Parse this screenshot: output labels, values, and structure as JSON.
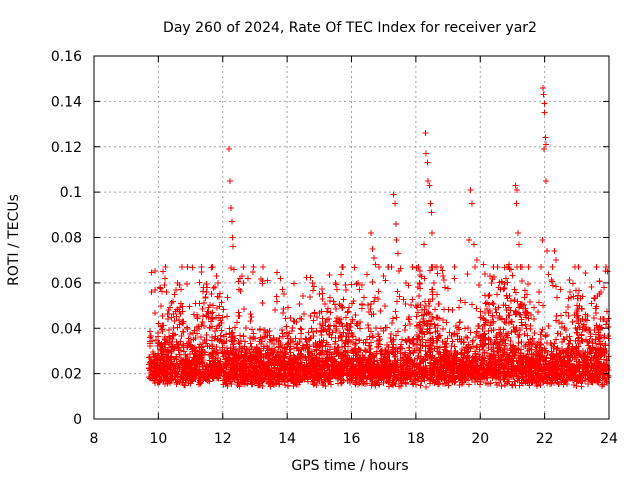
{
  "chart_data": {
    "type": "scatter",
    "title": "Day 260 of 2024, Rate Of TEC Index for receiver yar2",
    "xlabel": "GPS time / hours",
    "ylabel": "ROTI / TECUs",
    "xlim": [
      8,
      24
    ],
    "ylim": [
      0,
      0.16
    ],
    "x_ticks": [
      8,
      10,
      12,
      14,
      16,
      18,
      20,
      22,
      24
    ],
    "y_ticks": [
      0,
      0.02,
      0.04,
      0.06,
      0.08,
      0.1,
      0.12,
      0.14,
      0.16
    ],
    "x_tick_labels": [
      "8",
      "10",
      "12",
      "14",
      "16",
      "18",
      "20",
      "22",
      "24"
    ],
    "y_tick_labels": [
      "0",
      "0.02",
      "0.04",
      "0.06",
      "0.08",
      "0.1",
      "0.12",
      "0.14",
      "0.16"
    ],
    "grid": true,
    "marker": "plus",
    "series_color": "#ff0000",
    "data_range_x": [
      9.7,
      24
    ],
    "base_density_points": 5200,
    "series": [
      {
        "name": "ROTI",
        "points": [
          [
            12.2,
            0.119
          ],
          [
            12.22,
            0.105
          ],
          [
            12.25,
            0.093
          ],
          [
            12.28,
            0.087
          ],
          [
            12.3,
            0.08
          ],
          [
            12.32,
            0.076
          ],
          [
            12.35,
            0.066
          ],
          [
            18.3,
            0.126
          ],
          [
            18.32,
            0.117
          ],
          [
            18.36,
            0.113
          ],
          [
            18.38,
            0.105
          ],
          [
            18.42,
            0.103
          ],
          [
            18.45,
            0.095
          ],
          [
            18.48,
            0.091
          ],
          [
            18.5,
            0.082
          ],
          [
            18.25,
            0.077
          ],
          [
            21.95,
            0.146
          ],
          [
            21.97,
            0.143
          ],
          [
            21.99,
            0.139
          ],
          [
            22.0,
            0.135
          ],
          [
            22.02,
            0.124
          ],
          [
            22.04,
            0.121
          ],
          [
            21.98,
            0.119
          ],
          [
            22.05,
            0.105
          ],
          [
            21.93,
            0.079
          ],
          [
            22.07,
            0.074
          ],
          [
            21.1,
            0.103
          ],
          [
            21.14,
            0.101
          ],
          [
            21.12,
            0.095
          ],
          [
            21.18,
            0.082
          ],
          [
            21.2,
            0.077
          ],
          [
            19.7,
            0.101
          ],
          [
            19.75,
            0.095
          ],
          [
            19.65,
            0.079
          ],
          [
            19.8,
            0.077
          ],
          [
            19.9,
            0.07
          ],
          [
            19.6,
            0.064
          ],
          [
            17.3,
            0.099
          ],
          [
            17.35,
            0.095
          ],
          [
            17.38,
            0.086
          ],
          [
            17.4,
            0.079
          ],
          [
            17.45,
            0.073
          ],
          [
            17.25,
            0.067
          ],
          [
            16.6,
            0.082
          ],
          [
            16.65,
            0.075
          ],
          [
            16.7,
            0.071
          ],
          [
            16.75,
            0.068
          ],
          [
            10.15,
            0.065
          ],
          [
            10.2,
            0.062
          ],
          [
            10.05,
            0.058
          ],
          [
            10.25,
            0.056
          ],
          [
            10.6,
            0.06
          ],
          [
            10.65,
            0.059
          ],
          [
            10.7,
            0.057
          ],
          [
            11.4,
            0.058
          ],
          [
            11.5,
            0.056
          ],
          [
            11.65,
            0.055
          ],
          [
            11.8,
            0.063
          ],
          [
            11.85,
            0.06
          ],
          [
            12.6,
            0.063
          ],
          [
            12.65,
            0.06
          ],
          [
            12.5,
            0.057
          ],
          [
            13.8,
            0.062
          ],
          [
            13.85,
            0.057
          ],
          [
            13.9,
            0.055
          ],
          [
            15.0,
            0.055
          ],
          [
            15.1,
            0.053
          ],
          [
            15.5,
            0.06
          ],
          [
            15.55,
            0.057
          ],
          [
            16.2,
            0.06
          ],
          [
            16.25,
            0.057
          ],
          [
            17.0,
            0.063
          ],
          [
            17.05,
            0.061
          ],
          [
            17.7,
            0.06
          ],
          [
            18.85,
            0.063
          ],
          [
            18.9,
            0.058
          ],
          [
            20.1,
            0.068
          ],
          [
            20.15,
            0.064
          ],
          [
            20.3,
            0.063
          ],
          [
            20.35,
            0.06
          ],
          [
            20.8,
            0.062
          ],
          [
            20.9,
            0.068
          ],
          [
            20.95,
            0.066
          ],
          [
            22.3,
            0.074
          ],
          [
            22.35,
            0.07
          ],
          [
            22.5,
            0.057
          ],
          [
            22.9,
            0.054
          ],
          [
            23.0,
            0.05
          ],
          [
            23.9,
            0.067
          ],
          [
            23.95,
            0.065
          ],
          [
            23.85,
            0.058
          ],
          [
            23.7,
            0.055
          ]
        ]
      }
    ]
  }
}
